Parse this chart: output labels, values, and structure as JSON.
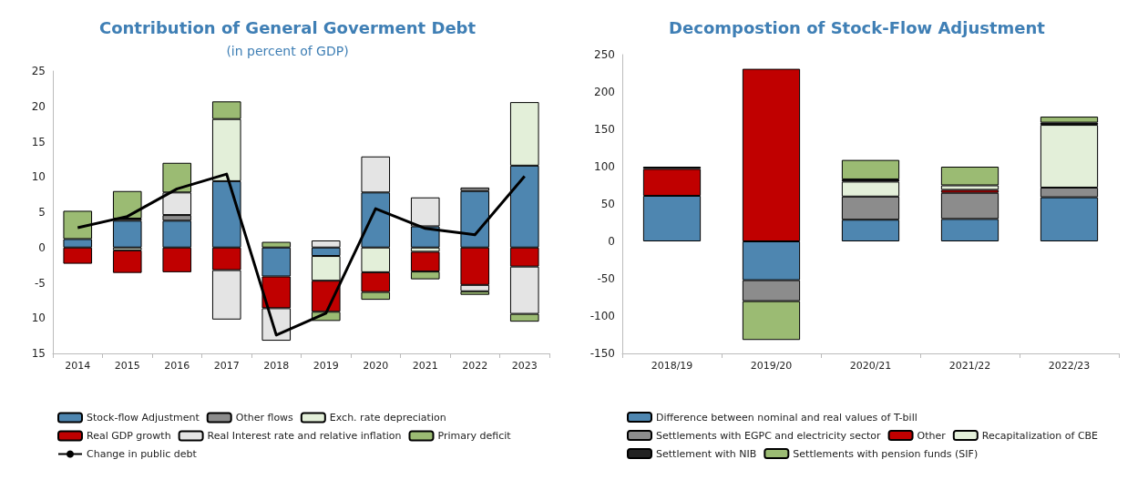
{
  "chart_data": [
    {
      "type": "bar",
      "title": "Contribution of General Goverment Debt",
      "subtitle": "(in percent of GDP)",
      "stacked": true,
      "categories": [
        "2014",
        "2015",
        "2016",
        "2017",
        "2018",
        "2019",
        "2020",
        "2021",
        "2022",
        "2023"
      ],
      "series": [
        {
          "name": "Stock-flow Adjustment",
          "color": "#4e86b0",
          "values": [
            1.2,
            3.8,
            3.8,
            9.4,
            -4.1,
            -1.2,
            7.8,
            3.0,
            8.0,
            11.6
          ]
        },
        {
          "name": "Other flows",
          "color": "#8c8c8c",
          "values": [
            null,
            0.3,
            0.8,
            null,
            null,
            null,
            null,
            null,
            0.5,
            null
          ]
        },
        {
          "name": "Exch. rate depreciation",
          "color": "#e3efd9",
          "values": [
            null,
            -0.4,
            null,
            8.8,
            null,
            -3.5,
            -3.5,
            -0.6,
            null,
            9.0
          ]
        },
        {
          "name": "Real GDP growth",
          "color": "#c00000",
          "values": [
            -2.3,
            -3.2,
            -3.5,
            -3.2,
            -4.5,
            -4.4,
            -2.8,
            -2.8,
            -5.3,
            -2.7
          ]
        },
        {
          "name": "Real Interest rate and relative inflation",
          "color": "#e4e4e4",
          "values": [
            null,
            null,
            3.2,
            -7.0,
            -4.6,
            1.0,
            5.1,
            4.1,
            -0.9,
            -6.7
          ]
        },
        {
          "name": "Primary deficit",
          "color": "#9bbb73",
          "values": [
            4.0,
            3.9,
            4.2,
            2.5,
            0.8,
            -1.3,
            -1.1,
            -1.1,
            -0.5,
            -1.1
          ]
        },
        {
          "name": "Change in public debt",
          "type": "line",
          "color": "#000000",
          "values": [
            2.8,
            4.4,
            8.3,
            10.4,
            -12.4,
            -9.3,
            5.5,
            2.7,
            1.8,
            10.1
          ]
        }
      ],
      "ylim": [
        -15,
        25
      ],
      "yticks": [
        {
          "value": -15,
          "label": "15"
        },
        {
          "value": -10,
          "label": "10"
        },
        -5,
        0,
        5,
        10,
        15,
        20,
        25
      ],
      "grid": false,
      "legend": "bottom",
      "marker": "none"
    },
    {
      "type": "bar",
      "title": "Decompostion of Stock-Flow Adjustment",
      "stacked": true,
      "categories": [
        "2018/19",
        "2019/20",
        "2020/21",
        "2021/22",
        "2022/23"
      ],
      "series": [
        {
          "name": "Difference between nominal and real values of T-bill",
          "color": "#4e86b0",
          "values": [
            61,
            -52,
            29,
            30,
            59
          ]
        },
        {
          "name": "Settlements with EGPC and electricity sector",
          "color": "#8c8c8c",
          "values": [
            null,
            -28,
            31,
            35,
            13
          ]
        },
        {
          "name": "Other",
          "color": "#c00000",
          "values": [
            36,
            231,
            null,
            4,
            null
          ]
        },
        {
          "name": "Recapitalization of CBE",
          "color": "#e3efd9",
          "values": [
            null,
            null,
            20,
            6,
            84
          ]
        },
        {
          "name": "Settlement with NIB",
          "color": "#222222",
          "values": [
            3,
            null,
            3,
            null,
            3
          ]
        },
        {
          "name": "Settlements with pension funds (SIF)",
          "color": "#9bbb73",
          "values": [
            null,
            -52,
            26,
            25,
            8
          ]
        }
      ],
      "ylim": [
        -150,
        250
      ],
      "yticks": [
        -150,
        -100,
        -50,
        0,
        50,
        100,
        150,
        200,
        250
      ],
      "grid": false,
      "legend": "bottom"
    }
  ]
}
